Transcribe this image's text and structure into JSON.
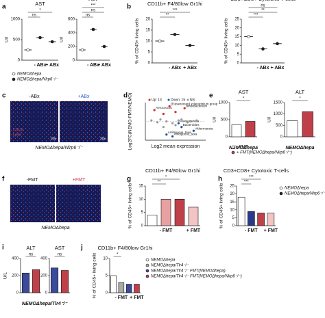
{
  "panel_labels": [
    "a",
    "b",
    "c",
    "d",
    "e",
    "f",
    "g",
    "h",
    "i",
    "j"
  ],
  "images": {
    "c": {
      "labels": [
        "-ABx",
        "+ABx"
      ],
      "magnification": [
        "20x",
        "20x"
      ],
      "stain": [
        "CD11b",
        "Ly6G"
      ],
      "caption": "NEMOΔhepa/Nlrp6⁻/⁻"
    },
    "f": {
      "labels": [
        "-FMT",
        "+FMT"
      ],
      "caption": "NEMOΔhepa"
    }
  },
  "chart_data": [
    {
      "type": "dot",
      "title": "AST",
      "ylabel": "U/l",
      "categories": [
        null,
        "- ABx",
        "+ ABx"
      ],
      "values": [
        250,
        550,
        450
      ],
      "colors": [
        "#ffffff",
        "#222222",
        "#222222"
      ],
      "ylim": [
        0,
        1000
      ],
      "yticks": [
        0,
        500,
        1000
      ],
      "annotations": [
        "ns",
        "*"
      ],
      "legend": [
        {
          "label": "NEMOΔhepa",
          "color": "#ffffff"
        },
        {
          "label": "NEMOΔhepa/Nlrp6⁻/⁻",
          "color": "#222222"
        }
      ]
    },
    {
      "type": "dot",
      "title": "ALT",
      "ylabel": "U/l",
      "categories": [
        null,
        "- ABx",
        "+ ABx"
      ],
      "values": [
        150,
        450,
        200
      ],
      "colors": [
        "#ffffff",
        "#222222",
        "#222222"
      ],
      "ylim": [
        0,
        600
      ],
      "yticks": [
        0,
        200,
        400,
        600
      ],
      "annotations": [
        "ns",
        "ns",
        "***"
      ]
    },
    {
      "type": "dot",
      "title": "CD11b+ F4/80low Gr1hi",
      "ylabel": "% of CD45+ living cells",
      "categories": [
        null,
        "- ABx",
        "+ ABx"
      ],
      "values": [
        10,
        13,
        8
      ],
      "colors": [
        "#ffffff",
        "#222222",
        "#222222"
      ],
      "ylim": [
        0,
        20
      ],
      "yticks": [
        0,
        5,
        10,
        15,
        20
      ],
      "annotations": [
        "**",
        "***"
      ]
    },
    {
      "type": "dot",
      "title": "CD3+CD8+ Cytotoxic T-cells",
      "ylabel": "% of CD45+ living cells",
      "categories": [
        null,
        "- ABx",
        "+ ABx"
      ],
      "values": [
        15,
        8,
        11
      ],
      "colors": [
        "#ffffff",
        "#222222",
        "#222222"
      ],
      "ylim": [
        0,
        25
      ],
      "yticks": [
        0,
        5,
        10,
        15,
        20,
        25
      ],
      "annotations": [
        "***",
        "**",
        "ns"
      ]
    },
    {
      "type": "scatter",
      "ylabel": "Log2FC(NEMO-FMT/NEMO)",
      "xlabel": "Log2 mean expression",
      "xlim": [
        0,
        20
      ],
      "ylim": [
        -10,
        10
      ],
      "series": [
        {
          "name": "Up: 13",
          "color": "#d62728",
          "x": [
            3,
            8,
            13,
            6,
            10
          ],
          "values": [
            6,
            8,
            7,
            4,
            5
          ],
          "labels": [
            "Aerococcus",
            "[Eubacterium] xylanophilum group",
            "Bifidobacterium",
            null,
            null
          ]
        },
        {
          "name": "Down: 15",
          "color": "#1f4e9c",
          "x": [
            16,
            12,
            11,
            7,
            9
          ],
          "values": [
            -5,
            -3,
            -1,
            -7,
            -8
          ],
          "labels": [
            "Akkermansia",
            "Bacteroides",
            "Parasutterella",
            "Ambiguous_taxa",
            "Ambiguous_taxa"
          ]
        },
        {
          "name": "NS",
          "color": "#999999",
          "x": [
            2,
            4,
            5,
            7,
            9,
            11,
            12,
            14,
            15,
            17,
            10,
            6
          ],
          "values": [
            0.5,
            -0.5,
            1,
            0,
            -1,
            0.5,
            1,
            -0.5,
            0,
            0.5,
            -2,
            -3
          ]
        }
      ]
    },
    {
      "type": "bar",
      "title": "AST",
      "ylabel": "U/l",
      "categories": [
        null,
        null
      ],
      "values": [
        350,
        450
      ],
      "colors": [
        "#ffffff",
        "#c0404a"
      ],
      "ylim": [
        0,
        1000
      ],
      "yticks": [
        0,
        500,
        1000
      ],
      "annotations": [
        "*"
      ],
      "xlabel": "NEMOΔhepa",
      "legend": [
        {
          "label": "- FMT",
          "color": "#ffffff"
        },
        {
          "label": "+ FMT(NEMOΔhepa/Nlrp6⁻/⁻)",
          "color": "#c0404a"
        }
      ]
    },
    {
      "type": "bar",
      "title": "ALT",
      "ylabel": "U/l",
      "categories": [
        null,
        null
      ],
      "values": [
        700,
        1100
      ],
      "colors": [
        "#ffffff",
        "#c0404a"
      ],
      "ylim": [
        0,
        1500
      ],
      "yticks": [
        0,
        500,
        1000,
        1500
      ],
      "annotations": [
        "*"
      ],
      "xlabel": "NEMOΔhepa"
    },
    {
      "type": "bar",
      "title": "CD11b+ F4/80low Gr1hi",
      "ylabel": "% of CD45+ living cells",
      "categories": [
        null,
        "- FMT",
        null,
        "+ FMT"
      ],
      "values": [
        4,
        10,
        10,
        7
      ],
      "colors": [
        "#ffffff",
        "#e8a0a0",
        "#c0404a",
        "#f3c4c4"
      ],
      "ylim": [
        0,
        15
      ],
      "yticks": [
        0,
        5,
        10,
        15
      ],
      "annotations": [
        "**",
        "*"
      ]
    },
    {
      "type": "bar",
      "title": "CD3+CD8+ Cytotoxic T-cells",
      "ylabel": "% of CD45+ living cells",
      "categories": [
        null,
        "- FMT",
        null,
        "+ FMT"
      ],
      "values": [
        18,
        9,
        8,
        8
      ],
      "colors": [
        "#ffffff",
        "#2a3a8a",
        "#c0404a",
        "#f3c4c4"
      ],
      "ylim": [
        0,
        25
      ],
      "yticks": [
        0,
        5,
        10,
        15,
        20,
        25
      ],
      "annotations": [
        "***",
        "***"
      ],
      "legend": [
        {
          "label": "NEMOΔhepa",
          "color": "#ffffff"
        },
        {
          "label": "NEMOΔhepa/Nlrp6⁻/⁻",
          "color": "#222222"
        }
      ]
    },
    {
      "type": "bar",
      "title": "ALT",
      "ylabel": "U/L",
      "categories": [
        null,
        null
      ],
      "values": [
        230,
        270
      ],
      "colors": [
        "#3b4a9a",
        "#c0404a"
      ],
      "ylim": [
        0,
        400
      ],
      "yticks": [
        0,
        200,
        400
      ],
      "annotations": [
        "ns"
      ],
      "xlabel": "NEMOΔhepa/Tlr4⁻/⁻"
    },
    {
      "type": "bar",
      "title": "AST",
      "categories": [
        null,
        null
      ],
      "values": [
        290,
        260
      ],
      "colors": [
        "#3b4a9a",
        "#c0404a"
      ],
      "ylim": [
        0,
        400
      ],
      "yticks": [
        0,
        200,
        400
      ],
      "annotations": [
        "ns"
      ]
    },
    {
      "type": "bar",
      "title": "CD11b+ F4/80low Gr1hi",
      "ylabel": "% of CD45+ living cells",
      "categories": [
        null,
        "- FMT",
        null,
        "+ FMT"
      ],
      "values": [
        5,
        3,
        2.5,
        2.5
      ],
      "colors": [
        "#ffffff",
        "#aaaaaa",
        "#3b4a9a",
        "#c0404a"
      ],
      "ylim": [
        0,
        10
      ],
      "yticks": [
        0,
        5,
        10
      ],
      "annotations": [
        "*"
      ],
      "legend": [
        {
          "label": "NEMOΔhepa",
          "color": "#ffffff"
        },
        {
          "label": "NEMOΔhepa/Tlr4⁻/⁻",
          "color": "#aaaaaa"
        },
        {
          "label": "NEMOΔhepa/Tlr4⁻/⁻ FMT(NEMOΔhepa)",
          "color": "#3b4a9a"
        },
        {
          "label": "NEMOΔhepa/Tlr4⁻/⁻ FMT(NEMOΔhepa/Nlrp6⁻/⁻)",
          "color": "#c0404a"
        }
      ]
    }
  ]
}
